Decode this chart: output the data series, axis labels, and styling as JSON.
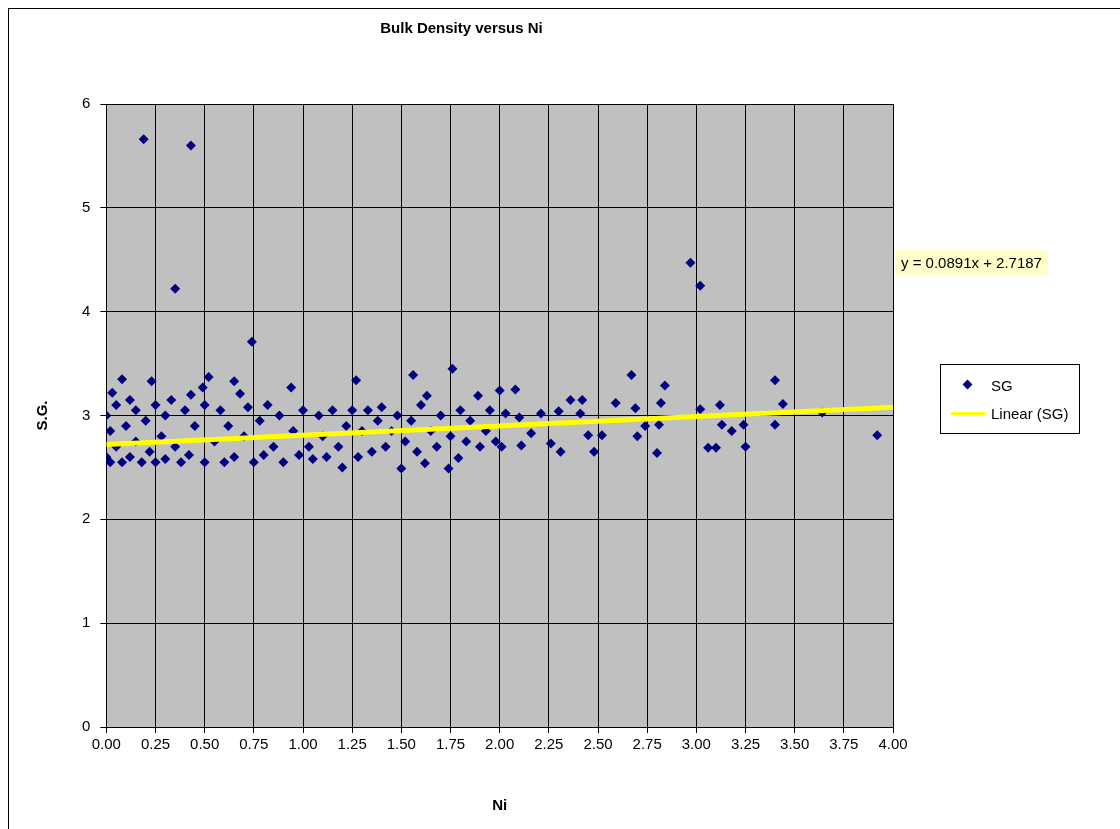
{
  "chart_data": {
    "type": "scatter",
    "title": "Bulk Density versus Ni",
    "xlabel": "Ni",
    "ylabel": "S.G.",
    "xlim": [
      0,
      4
    ],
    "xticks": [
      {
        "value": 0,
        "label": "0.00"
      },
      {
        "value": 0.25,
        "label": "0.25"
      },
      {
        "value": 0.5,
        "label": "0.50"
      },
      {
        "value": 0.75,
        "label": "0.75"
      },
      {
        "value": 1,
        "label": "1.00"
      },
      {
        "value": 1.25,
        "label": "1.25"
      },
      {
        "value": 1.5,
        "label": "1.50"
      },
      {
        "value": 1.75,
        "label": "1.75"
      },
      {
        "value": 2,
        "label": "2.00"
      },
      {
        "value": 2.25,
        "label": "2.25"
      },
      {
        "value": 2.5,
        "label": "2.50"
      },
      {
        "value": 2.75,
        "label": "2.75"
      },
      {
        "value": 3,
        "label": "3.00"
      },
      {
        "value": 3.25,
        "label": "3.25"
      },
      {
        "value": 3.5,
        "label": "3.50"
      },
      {
        "value": 3.75,
        "label": "3.75"
      },
      {
        "value": 4,
        "label": "4.00"
      }
    ],
    "ylim": [
      0,
      6
    ],
    "yticks": [
      0,
      1,
      2,
      3,
      4,
      5,
      6
    ],
    "grid": true,
    "legend": "right",
    "marker": "diamond",
    "annotations": [
      "y = 0.0891x + 2.7187"
    ],
    "series": [
      {
        "name": "SG",
        "color": "#000080",
        "x": [
          0,
          0,
          0.02,
          0.02,
          0.03,
          0.05,
          0.05,
          0.08,
          0.08,
          0.1,
          0.12,
          0.12,
          0.15,
          0.15,
          0.18,
          0.2,
          0.23,
          0.22,
          0.25,
          0.25,
          0.28,
          0.3,
          0.3,
          0.33,
          0.35,
          0.38,
          0.4,
          0.43,
          0.42,
          0.45,
          0.49,
          0.5,
          0.5,
          0.52,
          0.55,
          0.58,
          0.6,
          0.62,
          0.65,
          0.65,
          0.68,
          0.7,
          0.72,
          0.75,
          0.78,
          0.8,
          0.82,
          0.85,
          0.88,
          0.9,
          0.94,
          0.95,
          0.98,
          1,
          1.03,
          1.05,
          1.08,
          1.1,
          1.12,
          1.15,
          1.18,
          1.2,
          1.22,
          1.25,
          1.27,
          1.28,
          1.3,
          1.33,
          1.35,
          1.38,
          1.4,
          1.42,
          1.45,
          1.48,
          1.5,
          1.52,
          1.56,
          1.55,
          1.58,
          1.6,
          1.62,
          1.63,
          1.65,
          1.68,
          1.7,
          1.74,
          1.76,
          1.75,
          1.79,
          1.8,
          1.83,
          1.85,
          1.89,
          1.9,
          1.93,
          1.95,
          1.98,
          0.19,
          0.43,
          0.35,
          0.74,
          2.97,
          3.02,
          2.67,
          2.84,
          3.4,
          3.44,
          3.4,
          3.92,
          3.64,
          3.25,
          3.24,
          3.18,
          3.12,
          3.13,
          3.06,
          3.1,
          3.02,
          2.8,
          2.7,
          2.81,
          2.82,
          2.74,
          2.69,
          2.59,
          2.52,
          2.48,
          2.45,
          2.42,
          2.36,
          2.41,
          2.31,
          2.3,
          2.26,
          2.21,
          2.16,
          2.1,
          2.08,
          2,
          2.03,
          2.01,
          2.11
        ],
        "values": [
          2.6,
          3,
          2.55,
          2.85,
          3.22,
          2.7,
          3.1,
          3.35,
          2.55,
          2.9,
          2.6,
          3.15,
          2.75,
          3.05,
          2.55,
          2.95,
          3.33,
          2.65,
          3.1,
          2.55,
          2.8,
          3,
          2.58,
          3.15,
          2.7,
          2.55,
          3.05,
          3.2,
          2.62,
          2.9,
          3.27,
          2.55,
          3.1,
          3.37,
          2.75,
          3.05,
          2.55,
          2.9,
          3.33,
          2.6,
          3.21,
          2.8,
          3.08,
          2.55,
          2.95,
          2.62,
          3.1,
          2.7,
          3,
          2.55,
          3.27,
          2.85,
          2.62,
          3.05,
          2.7,
          2.58,
          3,
          2.8,
          2.6,
          3.05,
          2.7,
          2.5,
          2.9,
          3.05,
          3.34,
          2.6,
          2.85,
          3.05,
          2.65,
          2.95,
          3.08,
          2.7,
          2.85,
          3,
          2.49,
          2.75,
          3.39,
          2.95,
          2.65,
          3.1,
          2.54,
          3.19,
          2.85,
          2.7,
          3,
          2.49,
          3.45,
          2.8,
          2.59,
          3.05,
          2.75,
          2.95,
          3.19,
          2.7,
          2.85,
          3.05,
          2.75,
          5.66,
          5.6,
          4.22,
          3.71,
          4.47,
          4.25,
          3.39,
          3.29,
          3.34,
          3.11,
          2.91,
          2.81,
          3.03,
          2.7,
          2.91,
          2.85,
          3.1,
          2.91,
          2.69,
          2.69,
          3.06,
          2.64,
          2.8,
          2.91,
          3.12,
          2.9,
          3.07,
          3.12,
          2.81,
          2.65,
          2.81,
          3.15,
          3.15,
          3.02,
          2.65,
          3.04,
          2.73,
          3.02,
          2.83,
          2.98,
          3.25,
          3.24,
          3.02,
          2.7,
          2.71
        ]
      },
      {
        "name": "Linear (SG)",
        "type": "line",
        "marker": "none",
        "color": "#ffff00",
        "x": [
          0,
          4
        ],
        "values": [
          2.72,
          3.08
        ]
      }
    ]
  }
}
